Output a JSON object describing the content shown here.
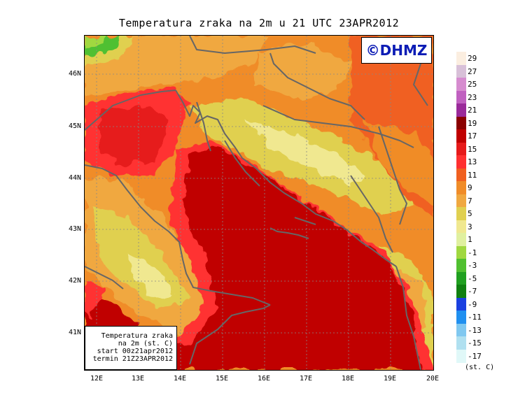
{
  "title": "Temperatura zraka na 2m u 21 UTC 23APR2012",
  "logo_text": "©DHMZ",
  "info": {
    "line1": "Temperatura zraka",
    "line2": "na 2m (st. C)",
    "line3": "start 00z21apr2012",
    "line4": "termin 21Z23APR2012"
  },
  "map": {
    "latitudes": [
      "46N",
      "45N",
      "44N",
      "43N",
      "42N",
      "41N"
    ],
    "longitudes": [
      "12E",
      "13E",
      "14E",
      "15E",
      "16E",
      "17E",
      "18E",
      "19E",
      "20E"
    ],
    "lon_range": [
      11.7,
      20.0
    ],
    "lat_range": [
      40.3,
      46.7
    ]
  },
  "legend": {
    "unit": "(st. C)",
    "labels": [
      "29",
      "27",
      "25",
      "23",
      "21",
      "19",
      "17",
      "15",
      "13",
      "11",
      "9",
      "7",
      "5",
      "3",
      "1",
      "-1",
      "-3",
      "-5",
      "-7",
      "-9",
      "-11",
      "-13",
      "-15",
      "-17"
    ],
    "colors": [
      "#fbeee0",
      "#d8c0d8",
      "#d68ccf",
      "#c060c0",
      "#9a2a9a",
      "#8a0000",
      "#c00000",
      "#e61a1a",
      "#ff3030",
      "#f06020",
      "#f08c28",
      "#f0a840",
      "#e0d050",
      "#f0e890",
      "#e0f0a0",
      "#a0d840",
      "#50c030",
      "#20a020",
      "#108010",
      "#1a40e0",
      "#2090f0",
      "#80c8f0",
      "#b0e0f0",
      "#e0f8f8"
    ]
  },
  "colors": {
    "sea_warm": "#c80000",
    "coast_line": "#666666"
  }
}
